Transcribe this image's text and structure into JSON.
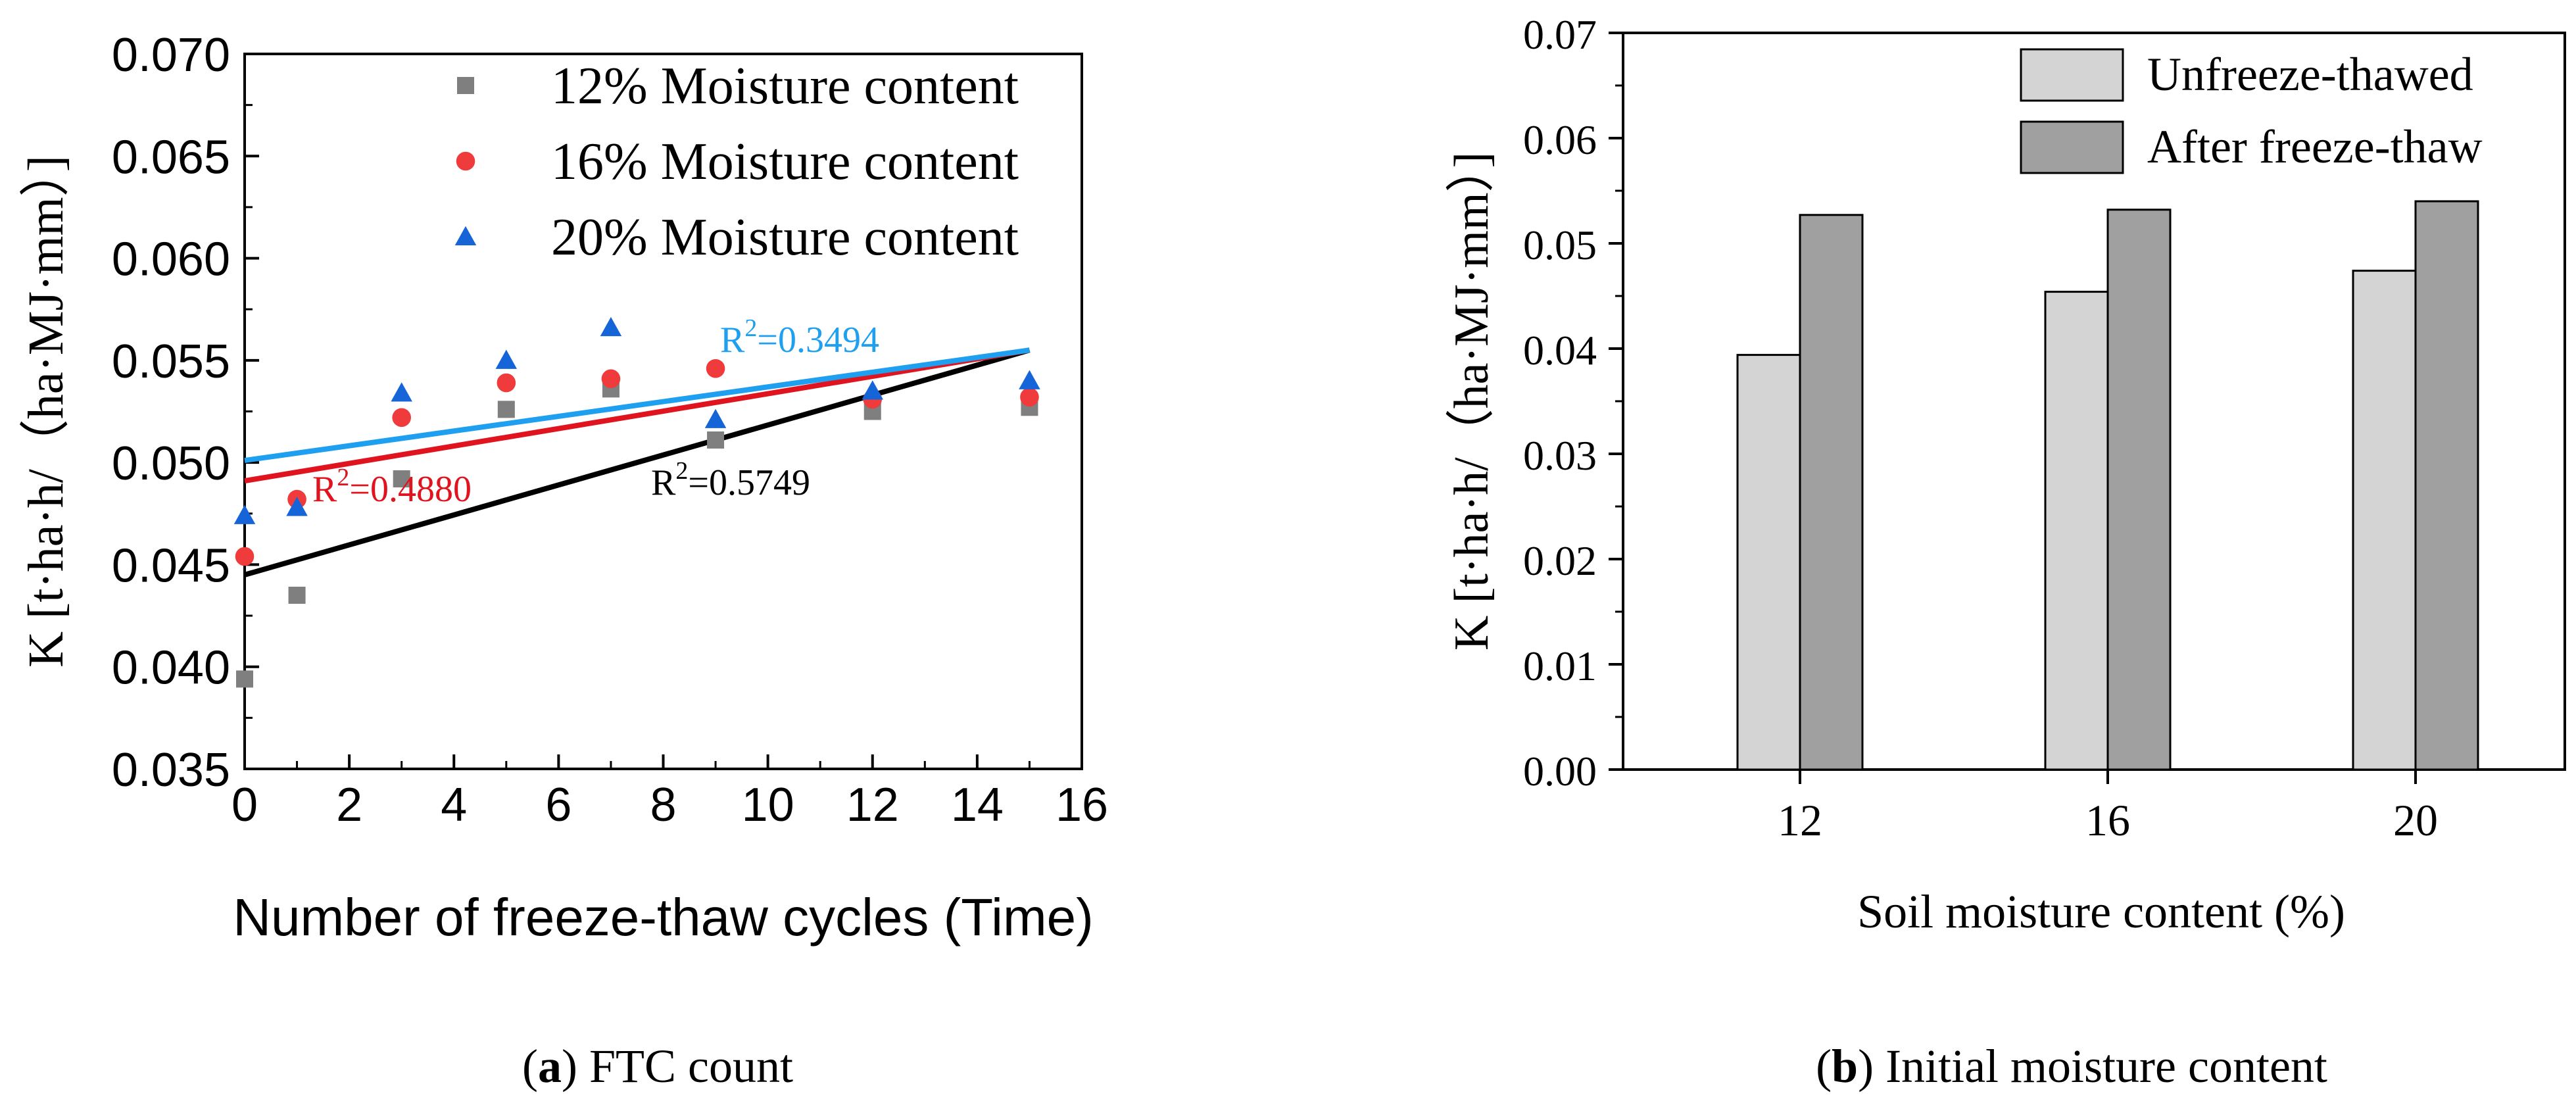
{
  "chart_data": [
    {
      "type": "scatter",
      "panel_id": "a",
      "caption_letter": "a",
      "caption_text": "FTC count",
      "xlabel": "Number of freeze-thaw cycles (Time)",
      "ylabel": "K [t·ha·h/（ha·MJ·mm）]",
      "xlim": [
        0,
        16
      ],
      "ylim": [
        0.035,
        0.07
      ],
      "xticks": [
        "0",
        "2",
        "4",
        "6",
        "8",
        "10",
        "12",
        "14",
        "16"
      ],
      "yticks": [
        "0.035",
        "0.040",
        "0.045",
        "0.050",
        "0.055",
        "0.060",
        "0.065",
        "0.070"
      ],
      "grid": false,
      "legend_position": "top-right",
      "series": [
        {
          "name": "12% Moisture content",
          "marker": "square",
          "color": "#7f7f7f",
          "x": [
            0,
            1,
            3,
            5,
            7,
            9,
            12,
            15
          ],
          "y": [
            0.0394,
            0.0435,
            0.0492,
            0.0526,
            0.0536,
            0.0511,
            0.0525,
            0.0527
          ],
          "fit": {
            "label": "R",
            "superscript": "2",
            "value": "=0.5749",
            "color": "#000000",
            "x": [
              0,
              15
            ],
            "y": [
              0.0445,
              0.0555
            ]
          }
        },
        {
          "name": "16% Moisture content",
          "marker": "circle",
          "color": "#ef3b3b",
          "x": [
            0,
            1,
            3,
            5,
            7,
            9,
            12,
            15
          ],
          "y": [
            0.0454,
            0.0482,
            0.0522,
            0.0539,
            0.0541,
            0.0546,
            0.0531,
            0.0532
          ],
          "fit": {
            "label": "R",
            "superscript": "2",
            "value": "=0.4880",
            "color": "#e0141e",
            "x": [
              0,
              15
            ],
            "y": [
              0.0491,
              0.0555
            ]
          }
        },
        {
          "name": "20% Moisture content",
          "marker": "triangle",
          "color": "#1565d8",
          "x": [
            0,
            1,
            3,
            5,
            7,
            9,
            12,
            15
          ],
          "y": [
            0.0474,
            0.0478,
            0.0534,
            0.055,
            0.0566,
            0.0521,
            0.0535,
            0.054
          ],
          "fit": {
            "label": "R",
            "superscript": "2",
            "value": "=0.3494",
            "color": "#1e9ff0",
            "x": [
              0,
              15
            ],
            "y": [
              0.0501,
              0.0555
            ]
          }
        }
      ]
    },
    {
      "type": "bar",
      "panel_id": "b",
      "caption_letter": "b",
      "caption_text": "Initial moisture content",
      "xlabel": "Soil moisture content (%)",
      "ylabel": "K [t·ha·h/（ha·MJ·mm）]",
      "categories": [
        "12",
        "16",
        "20"
      ],
      "ylim": [
        0,
        0.07
      ],
      "yticks": [
        "0.00",
        "0.01",
        "0.02",
        "0.03",
        "0.04",
        "0.05",
        "0.06",
        "0.07"
      ],
      "grid": false,
      "legend_position": "top-right",
      "series": [
        {
          "name": "Unfreeze-thawed",
          "color": "#d4d4d4",
          "values": [
            0.0394,
            0.0454,
            0.0474
          ]
        },
        {
          "name": "After freeze-thaw",
          "color": "#a0a0a0",
          "values": [
            0.0527,
            0.0532,
            0.054
          ]
        }
      ]
    }
  ]
}
